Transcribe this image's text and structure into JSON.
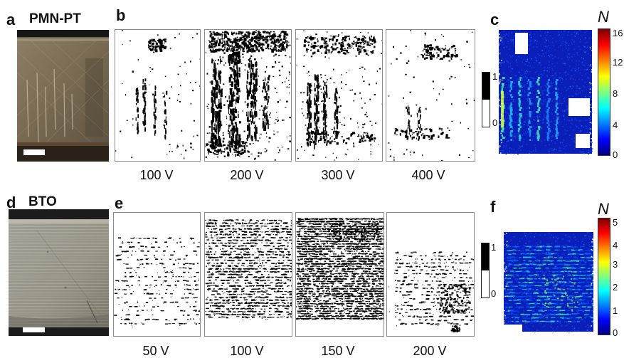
{
  "panel_letters": [
    "a",
    "b",
    "c",
    "d",
    "e",
    "f"
  ],
  "row_top": {
    "material": "PMN-PT",
    "voltages": [
      "100 V",
      "200 V",
      "300 V",
      "400 V"
    ],
    "binary_scale": {
      "max": "1",
      "min": "0"
    },
    "colorbar": {
      "label": "N",
      "ticks": [
        "16",
        "12",
        "8",
        "4",
        "0"
      ]
    }
  },
  "row_bottom": {
    "material": "BTO",
    "voltages": [
      "50 V",
      "100 V",
      "150 V",
      "200 V"
    ],
    "binary_scale": {
      "max": "1",
      "min": "0"
    },
    "colorbar": {
      "label": "N",
      "ticks": [
        "5",
        "4",
        "3",
        "2",
        "1",
        "0"
      ]
    }
  },
  "colors": {
    "jet": [
      "#00007f",
      "#0000ff",
      "#007fff",
      "#00ffff",
      "#7fff7f",
      "#ffff00",
      "#ff7f00",
      "#ff0000",
      "#7f0000"
    ],
    "map_blue": "#1a3fc4",
    "photo_pmnpt": "#7d6f55",
    "photo_bto": "#9a978c"
  }
}
